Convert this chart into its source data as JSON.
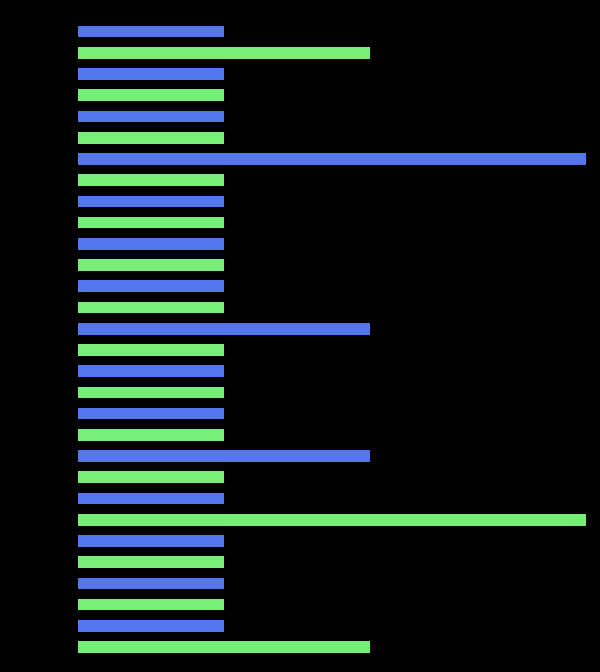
{
  "background_color": "#000000",
  "bar_blue": "#5577ee",
  "bar_green": "#77ee77",
  "fig_width": 6.0,
  "fig_height": 6.72,
  "dpi": 100,
  "xlim_max": 100,
  "bars": [
    {
      "color": "blue",
      "value": 28.5
    },
    {
      "color": "green",
      "value": 57.0
    },
    {
      "color": "blue",
      "value": 28.5
    },
    {
      "color": "green",
      "value": 28.5
    },
    {
      "color": "blue",
      "value": 28.5
    },
    {
      "color": "green",
      "value": 28.5
    },
    {
      "color": "blue",
      "value": 99.0
    },
    {
      "color": "green",
      "value": 28.5
    },
    {
      "color": "blue",
      "value": 28.5
    },
    {
      "color": "green",
      "value": 28.5
    },
    {
      "color": "blue",
      "value": 28.5
    },
    {
      "color": "green",
      "value": 28.5
    },
    {
      "color": "blue",
      "value": 28.5
    },
    {
      "color": "green",
      "value": 28.5
    },
    {
      "color": "blue",
      "value": 57.0
    },
    {
      "color": "green",
      "value": 28.5
    },
    {
      "color": "blue",
      "value": 28.5
    },
    {
      "color": "green",
      "value": 28.5
    },
    {
      "color": "blue",
      "value": 28.5
    },
    {
      "color": "green",
      "value": 28.5
    },
    {
      "color": "blue",
      "value": 57.0
    },
    {
      "color": "green",
      "value": 28.5
    },
    {
      "color": "blue",
      "value": 28.5
    },
    {
      "color": "green",
      "value": 99.0
    },
    {
      "color": "blue",
      "value": 28.5
    },
    {
      "color": "green",
      "value": 28.5
    },
    {
      "color": "blue",
      "value": 28.5
    },
    {
      "color": "green",
      "value": 28.5
    },
    {
      "color": "blue",
      "value": 28.5
    },
    {
      "color": "green",
      "value": 57.0
    }
  ]
}
